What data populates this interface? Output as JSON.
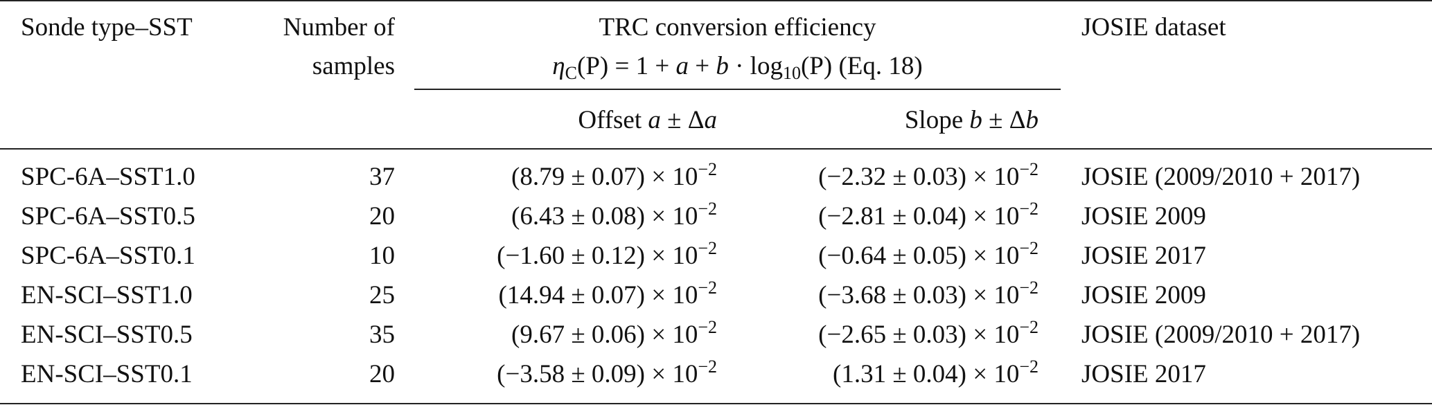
{
  "table": {
    "headers": {
      "sonde_type": "Sonde type–SST",
      "number_line1": "Number of",
      "number_line2": "samples",
      "trc_title": "TRC conversion efficiency",
      "equation": {
        "eta": "η",
        "eta_sub": "C",
        "lhs_arg": "(P) = 1 + ",
        "a": "a",
        "plus": " + ",
        "b": "b",
        "dot_log": " · log",
        "log_base": "10",
        "rhs_arg": "(P)",
        "eq_ref": " (Eq. 18)"
      },
      "offset_prefix": "Offset ",
      "offset_sym": "a",
      "offset_pm": " ± Δ",
      "offset_sym2": "a",
      "slope_prefix": "Slope ",
      "slope_sym": "b",
      "slope_pm": " ± Δ",
      "slope_sym2": "b",
      "josie_dataset": "JOSIE dataset"
    },
    "exp_text": "−2",
    "rows": [
      {
        "sonde": "SPC-6A–SST1.0",
        "n": "37",
        "offset": "(8.79 ± 0.07) × 10",
        "slope": "(−2.32 ± 0.03) × 10",
        "josie": "JOSIE (2009/2010 + 2017)"
      },
      {
        "sonde": "SPC-6A–SST0.5",
        "n": "20",
        "offset": "(6.43 ± 0.08) × 10",
        "slope": "(−2.81 ± 0.04) × 10",
        "josie": "JOSIE 2009"
      },
      {
        "sonde": "SPC-6A–SST0.1",
        "n": "10",
        "offset": "(−1.60 ± 0.12) × 10",
        "slope": "(−0.64 ± 0.05) × 10",
        "josie": "JOSIE 2017"
      },
      {
        "sonde": "EN-SCI–SST1.0",
        "n": "25",
        "offset": "(14.94 ± 0.07) × 10",
        "slope": "(−3.68 ± 0.03) × 10",
        "josie": "JOSIE 2009"
      },
      {
        "sonde": "EN-SCI–SST0.5",
        "n": "35",
        "offset": "(9.67 ± 0.06) × 10",
        "slope": "(−2.65 ± 0.03) × 10",
        "josie": "JOSIE (2009/2010 + 2017)"
      },
      {
        "sonde": "EN-SCI–SST0.1",
        "n": "20",
        "offset": "(−3.58 ± 0.09) × 10",
        "slope": "(1.31 ± 0.04) × 10",
        "josie": "JOSIE 2017"
      }
    ]
  }
}
